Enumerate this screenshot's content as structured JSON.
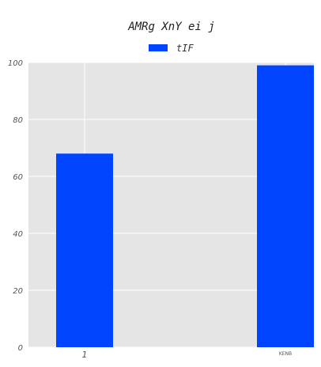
{
  "chart_data": {
    "type": "bar",
    "title": "AMRg XnY ei j",
    "categories": [
      "1",
      "KENB"
    ],
    "series": [
      {
        "name": "tIF",
        "values": [
          68,
          99
        ]
      }
    ],
    "xlabel": "",
    "ylabel": "",
    "ylim": [
      0,
      100
    ],
    "yticks": [
      "0",
      "20",
      "40",
      "60",
      "80",
      "100"
    ],
    "grid": true,
    "legend_position": "top-center",
    "colors": {
      "bar": "#0044ff",
      "plot_background": "#e5e5e5",
      "grid": "#ffffff"
    }
  }
}
